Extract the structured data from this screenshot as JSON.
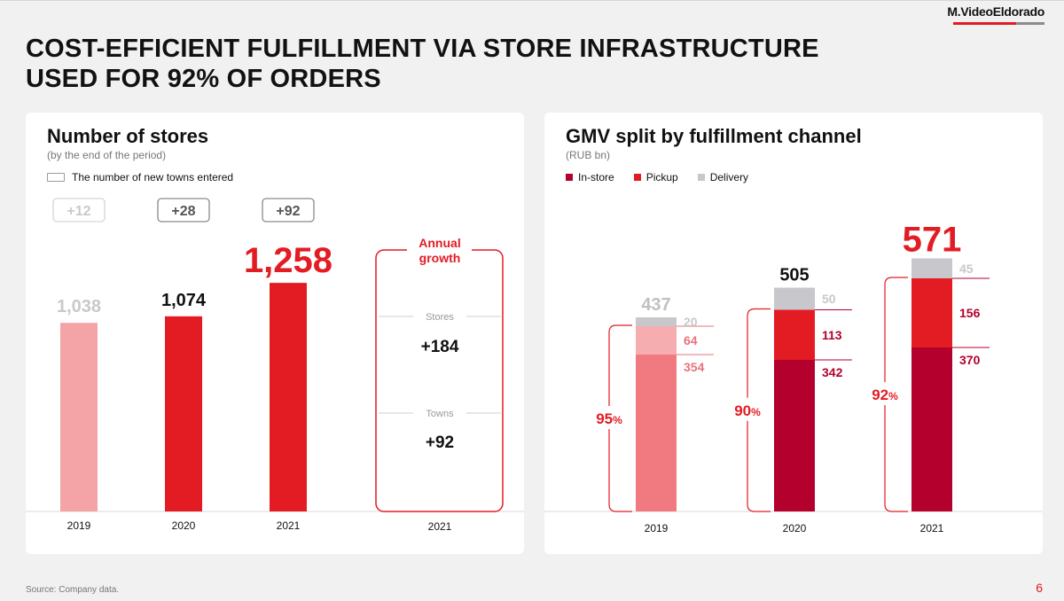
{
  "brand": "M.VideoEldorado",
  "title_line1": "COST-EFFICIENT FULFILLMENT VIA STORE INFRASTRUCTURE",
  "title_line2": "USED FOR 92% OF ORDERS",
  "source": "Source: Company data.",
  "page_number": "6",
  "colors": {
    "red": "#e31b23",
    "light_red": "#f4a3a7",
    "medium_red": "#f07a7f",
    "dark_red": "#b3002d",
    "gray": "#c8c8cc",
    "pale_red": "#f6adb0"
  },
  "stores": {
    "title": "Number of stores",
    "subtitle": "(by the end of the period)",
    "legend": "The number of new towns entered",
    "growth_box": {
      "heading": "Annual growth",
      "stores_label": "Stores",
      "stores_value": "+184",
      "towns_label": "Towns",
      "towns_value": "+92",
      "year": "2021"
    }
  },
  "gmv": {
    "title": "GMV split by fulfillment channel",
    "subtitle": "(RUB bn)",
    "legend": [
      "In-store",
      "Pickup",
      "Delivery"
    ]
  },
  "chart_data": [
    {
      "type": "bar",
      "title": "Number of stores",
      "categories": [
        "2019",
        "2020",
        "2021"
      ],
      "values": [
        1038,
        1074,
        1258
      ],
      "value_labels": [
        "1,038",
        "1,074",
        "1,258"
      ],
      "new_towns": [
        "+12",
        "+28",
        "+92"
      ],
      "ylim": [
        0,
        1400
      ]
    },
    {
      "type": "bar",
      "stacked": true,
      "title": "GMV split by fulfillment channel",
      "categories": [
        "2019",
        "2020",
        "2021"
      ],
      "series": [
        {
          "name": "In-store",
          "values": [
            354,
            342,
            370
          ]
        },
        {
          "name": "Pickup",
          "values": [
            64,
            113,
            156
          ]
        },
        {
          "name": "Delivery",
          "values": [
            20,
            50,
            45
          ]
        }
      ],
      "totals": [
        437,
        505,
        571
      ],
      "store_share": [
        "95%",
        "90%",
        "92%"
      ],
      "ylim": [
        0,
        600
      ]
    }
  ]
}
